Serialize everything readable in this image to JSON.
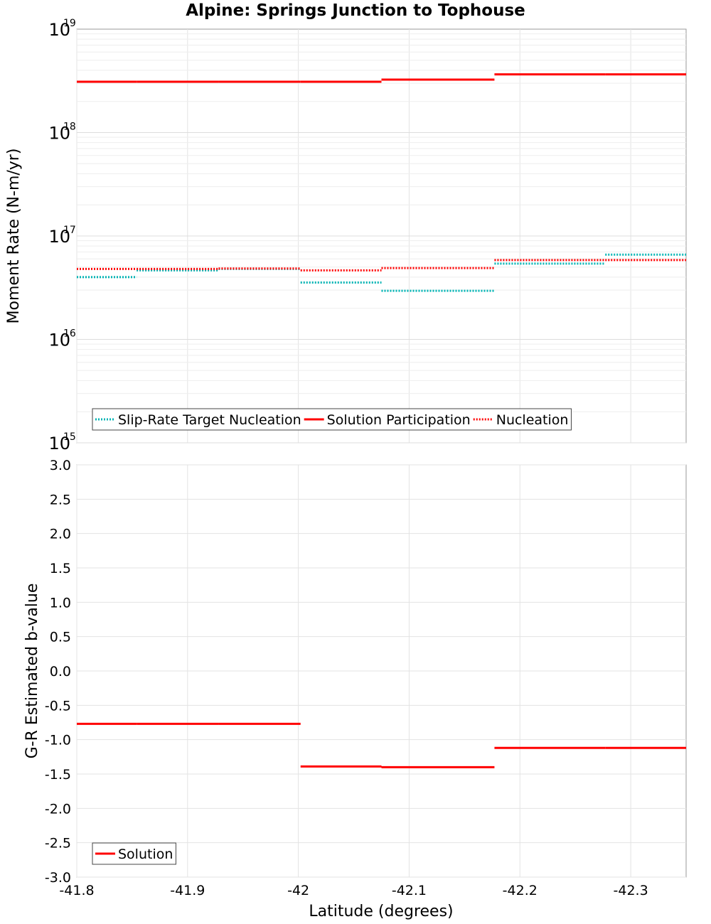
{
  "chart_data": {
    "type": "line",
    "title": "Alpine: Springs Junction to Tophouse",
    "xlabel": "Latitude (degrees)",
    "xlim": [
      -41.8,
      -42.35
    ],
    "x_ticks": [
      {
        "value": -41.8,
        "label": "-41.8"
      },
      {
        "value": -41.9,
        "label": "-41.9"
      },
      {
        "value": -42.0,
        "label": "-42"
      },
      {
        "value": -42.1,
        "label": "-42.1"
      },
      {
        "value": -42.2,
        "label": "-42.2"
      },
      {
        "value": -42.3,
        "label": "-42.3"
      }
    ],
    "panels": [
      {
        "id": "moment",
        "ylabel": "Moment Rate (N-m/yr)",
        "yscale": "log",
        "ylim": [
          1000000000000000.0,
          1e+19
        ],
        "y_ticks": [
          {
            "value": 1000000000000000.0,
            "base": "10",
            "exp": "15"
          },
          {
            "value": 1e+16,
            "base": "10",
            "exp": "16"
          },
          {
            "value": 1e+17,
            "base": "10",
            "exp": "17"
          },
          {
            "value": 1e+18,
            "base": "10",
            "exp": "18"
          },
          {
            "value": 1e+19,
            "base": "10",
            "exp": "19"
          }
        ],
        "legend": "bottom-left",
        "series": [
          {
            "name": "Slip-Rate Target Nucleation",
            "color": "#00b4b4",
            "style": "dotted",
            "segments": [
              {
                "x0": -41.8,
                "x1": -41.854,
                "y": 4e+16
              },
              {
                "x0": -41.854,
                "x1": -41.928,
                "y": 4.65e+16
              },
              {
                "x0": -41.928,
                "x1": -42.002,
                "y": 4.8e+16
              },
              {
                "x0": -42.002,
                "x1": -42.075,
                "y": 3.55e+16
              },
              {
                "x0": -42.075,
                "x1": -42.177,
                "y": 2.95e+16
              },
              {
                "x0": -42.177,
                "x1": -42.277,
                "y": 5.4e+16
              },
              {
                "x0": -42.277,
                "x1": -42.35,
                "y": 6.6e+16
              }
            ]
          },
          {
            "name": "Solution Participation",
            "color": "#ff0000",
            "style": "solid",
            "segments": [
              {
                "x0": -41.8,
                "x1": -41.854,
                "y": 3.1e+18
              },
              {
                "x0": -41.854,
                "x1": -41.928,
                "y": 3.1e+18
              },
              {
                "x0": -41.928,
                "x1": -42.002,
                "y": 3.1e+18
              },
              {
                "x0": -42.002,
                "x1": -42.075,
                "y": 3.1e+18
              },
              {
                "x0": -42.075,
                "x1": -42.177,
                "y": 3.25e+18
              },
              {
                "x0": -42.177,
                "x1": -42.277,
                "y": 3.65e+18
              },
              {
                "x0": -42.277,
                "x1": -42.35,
                "y": 3.65e+18
              }
            ]
          },
          {
            "name": "Nucleation",
            "color": "#ff0000",
            "style": "dotted",
            "segments": [
              {
                "x0": -41.8,
                "x1": -41.854,
                "y": 4.8e+16
              },
              {
                "x0": -41.854,
                "x1": -41.928,
                "y": 4.8e+16
              },
              {
                "x0": -41.928,
                "x1": -42.002,
                "y": 4.85e+16
              },
              {
                "x0": -42.002,
                "x1": -42.075,
                "y": 4.65e+16
              },
              {
                "x0": -42.075,
                "x1": -42.177,
                "y": 4.9e+16
              },
              {
                "x0": -42.177,
                "x1": -42.277,
                "y": 5.85e+16
              },
              {
                "x0": -42.277,
                "x1": -42.35,
                "y": 5.85e+16
              }
            ]
          }
        ]
      },
      {
        "id": "bvalue",
        "ylabel": "G-R Estimated b-value",
        "yscale": "linear",
        "ylim": [
          -3.0,
          3.0
        ],
        "y_ticks": [
          {
            "value": 3.0,
            "label": "3.0"
          },
          {
            "value": 2.5,
            "label": "2.5"
          },
          {
            "value": 2.0,
            "label": "2.0"
          },
          {
            "value": 1.5,
            "label": "1.5"
          },
          {
            "value": 1.0,
            "label": "1.0"
          },
          {
            "value": 0.5,
            "label": "0.5"
          },
          {
            "value": 0.0,
            "label": "0.0"
          },
          {
            "value": -0.5,
            "label": "-0.5"
          },
          {
            "value": -1.0,
            "label": "-1.0"
          },
          {
            "value": -1.5,
            "label": "-1.5"
          },
          {
            "value": -2.0,
            "label": "-2.0"
          },
          {
            "value": -2.5,
            "label": "-2.5"
          },
          {
            "value": -3.0,
            "label": "-3.0"
          }
        ],
        "legend": "bottom-left",
        "series": [
          {
            "name": "Solution",
            "color": "#ff0000",
            "style": "solid",
            "segments": [
              {
                "x0": -41.8,
                "x1": -41.854,
                "y": -0.77
              },
              {
                "x0": -41.854,
                "x1": -41.928,
                "y": -0.77
              },
              {
                "x0": -41.928,
                "x1": -42.002,
                "y": -0.77
              },
              {
                "x0": -42.002,
                "x1": -42.075,
                "y": -1.39
              },
              {
                "x0": -42.075,
                "x1": -42.177,
                "y": -1.4
              },
              {
                "x0": -42.177,
                "x1": -42.277,
                "y": -1.12
              },
              {
                "x0": -42.277,
                "x1": -42.35,
                "y": -1.12
              }
            ]
          }
        ]
      }
    ]
  }
}
